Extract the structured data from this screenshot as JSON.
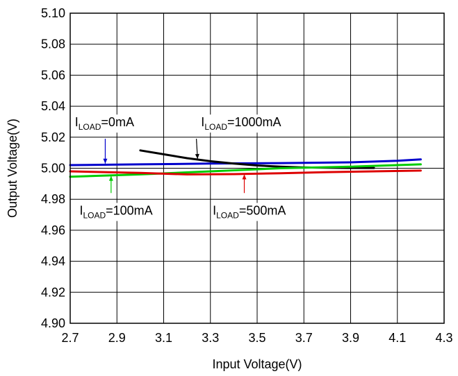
{
  "chart_data": {
    "type": "line",
    "xlabel": "Input Voltage(V)",
    "ylabel": "Output Voltage(V)",
    "xlim": [
      2.7,
      4.3
    ],
    "ylim": [
      4.9,
      5.1
    ],
    "grid": true,
    "x_ticks": [
      "2.7",
      "2.9",
      "3.1",
      "3.3",
      "3.5",
      "3.7",
      "3.9",
      "4.1",
      "4.3"
    ],
    "y_ticks": [
      "4.90",
      "4.92",
      "4.94",
      "4.96",
      "4.98",
      "5.00",
      "5.02",
      "5.04",
      "5.06",
      "5.08",
      "5.10"
    ],
    "series": [
      {
        "name": "ILOAD=0mA",
        "color": "#0000cc",
        "x": [
          2.7,
          3.0,
          3.3,
          3.6,
          3.9,
          4.1,
          4.2
        ],
        "y": [
          5.002,
          5.0025,
          5.003,
          5.0033,
          5.0038,
          5.0048,
          5.0057
        ]
      },
      {
        "name": "ILOAD=1000mA",
        "color": "#000000",
        "x": [
          3.0,
          3.1,
          3.2,
          3.3,
          3.4,
          3.5,
          3.6,
          3.7,
          3.8,
          3.9,
          4.0
        ],
        "y": [
          5.0115,
          5.009,
          5.0065,
          5.0045,
          5.003,
          5.0018,
          5.001,
          5.0005,
          5.0003,
          5.0002,
          5.0002
        ]
      },
      {
        "name": "ILOAD=100mA",
        "color": "#00cc00",
        "x": [
          2.7,
          3.0,
          3.3,
          3.6,
          3.9,
          4.2
        ],
        "y": [
          4.9945,
          4.996,
          4.998,
          5.0,
          5.001,
          5.0025
        ]
      },
      {
        "name": "ILOAD=500mA",
        "color": "#dd0000",
        "x": [
          2.7,
          3.0,
          3.2,
          3.4,
          3.6,
          3.8,
          4.0,
          4.2
        ],
        "y": [
          4.998,
          4.997,
          4.996,
          4.9962,
          4.9968,
          4.9975,
          4.998,
          4.9985
        ]
      }
    ],
    "annotations": [
      {
        "main": "I",
        "sub": "LOAD",
        "rest": "=0mA",
        "x": 2.72,
        "y": 5.027,
        "arrow_from": [
          2.85,
          5.019
        ],
        "arrow_to": [
          2.85,
          5.003
        ],
        "color": "#0000cc"
      },
      {
        "main": "I",
        "sub": "LOAD",
        "rest": "=1000mA",
        "x": 3.26,
        "y": 5.027,
        "arrow_from": [
          3.24,
          5.019
        ],
        "arrow_to": [
          3.245,
          5.006
        ],
        "color": "#000000"
      },
      {
        "main": "I",
        "sub": "LOAD",
        "rest": "=100mA",
        "x": 2.74,
        "y": 4.97,
        "arrow_from": [
          2.875,
          4.984
        ],
        "arrow_to": [
          2.875,
          4.995
        ],
        "color": "#00cc00"
      },
      {
        "main": "I",
        "sub": "LOAD",
        "rest": "=500mA",
        "x": 3.31,
        "y": 4.97,
        "arrow_from": [
          3.445,
          4.984
        ],
        "arrow_to": [
          3.445,
          4.996
        ],
        "color": "#dd0000"
      }
    ]
  }
}
